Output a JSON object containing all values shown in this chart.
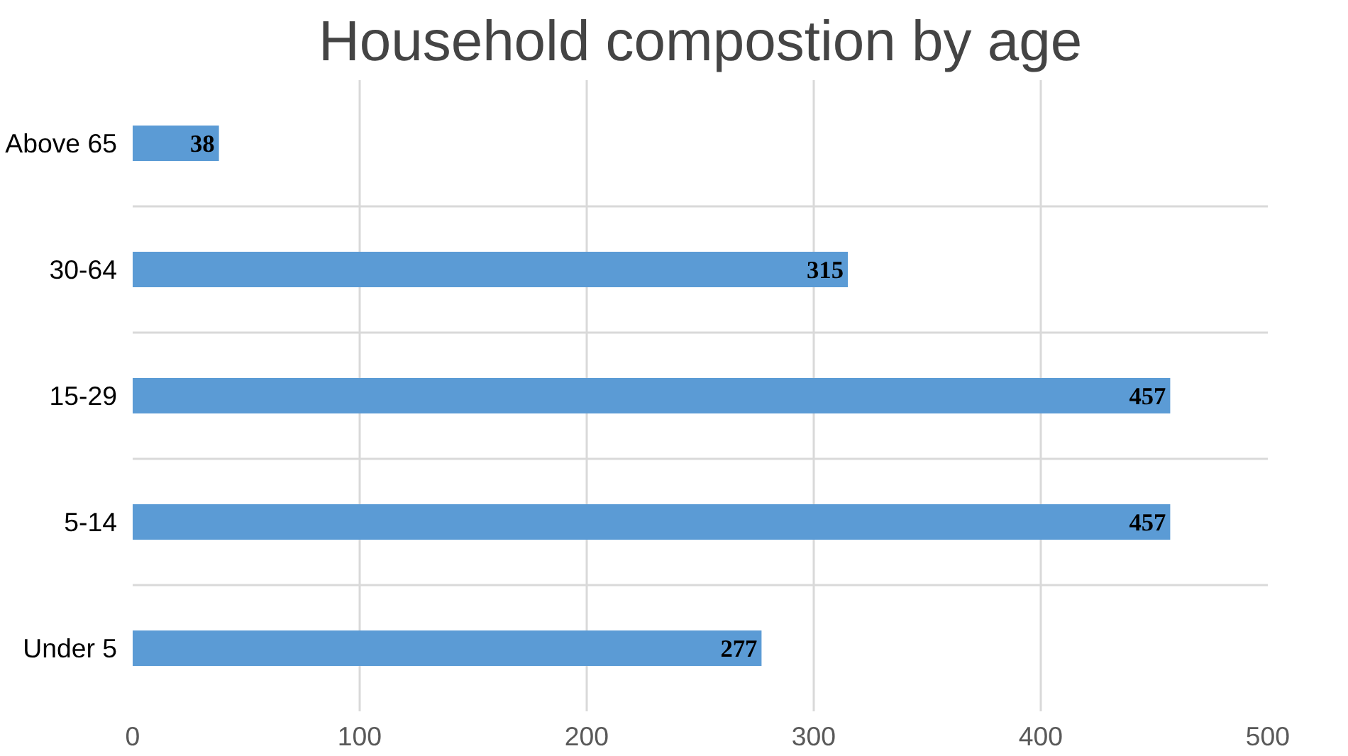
{
  "chart_data": {
    "type": "bar",
    "orientation": "horizontal",
    "title": "Household compostion by age",
    "categories": [
      "Above 65",
      "30-64",
      "15-29",
      "5-14",
      "Under 5"
    ],
    "values": [
      38,
      315,
      457,
      457,
      277
    ],
    "color": "#5b9bd5",
    "xlim": [
      0,
      500
    ],
    "xticks": [
      0,
      100,
      200,
      300,
      400,
      500
    ],
    "grid": true,
    "data_labels": true
  }
}
